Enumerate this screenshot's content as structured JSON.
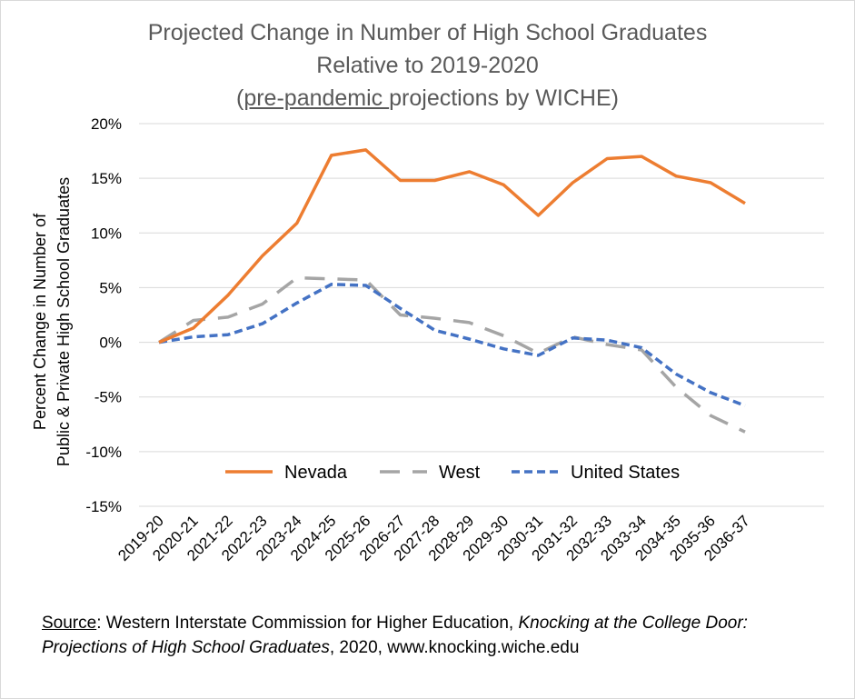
{
  "title": {
    "line1": "Projected Change in Number of High School Graduates",
    "line2": "Relative to 2019-2020",
    "line3_open": "(",
    "line3_underlined": "pre-pandemic ",
    "line3_rest": "projections by WICHE)"
  },
  "source": {
    "label": "Source",
    "text1": ": Western Interstate Commission for Higher Education, ",
    "italic": "Knocking at the College Door: Projections of High School Graduates",
    "text2": ", 2020, www.knocking.wiche.edu"
  },
  "chart_data": {
    "type": "line",
    "title": "Projected Change in Number of High School Graduates Relative to 2019-2020 (pre-pandemic projections by WICHE)",
    "ylabel_line1": "Percent Change in Number of",
    "ylabel_line2": "Public & Private High School Graduates",
    "xlabel": "",
    "ylim": [
      -15,
      20
    ],
    "y_ticks": [
      20,
      15,
      10,
      5,
      0,
      -5,
      -10,
      -15
    ],
    "y_tick_labels": [
      "20%",
      "15%",
      "10%",
      "5%",
      "0%",
      "-5%",
      "-10%",
      "-15%"
    ],
    "grid": true,
    "legend_position": "inside-bottom-center",
    "categories": [
      "2019-20",
      "2020-21",
      "2021-22",
      "2022-23",
      "2023-24",
      "2024-25",
      "2025-26",
      "2026-27",
      "2027-28",
      "2028-29",
      "2029-30",
      "2030-31",
      "2031-32",
      "2032-33",
      "2033-34",
      "2034-35",
      "2035-36",
      "2036-37"
    ],
    "series": [
      {
        "name": "Nevada",
        "color": "#ED7D31",
        "style": "solid",
        "values": [
          0,
          1.3,
          4.3,
          7.9,
          10.9,
          17.1,
          17.6,
          14.8,
          14.8,
          15.6,
          14.4,
          11.6,
          14.6,
          16.8,
          17.0,
          15.2,
          14.6,
          12.7
        ]
      },
      {
        "name": "West",
        "color": "#A5A5A5",
        "style": "long-dash",
        "values": [
          0,
          2.0,
          2.3,
          3.5,
          5.9,
          5.8,
          5.7,
          2.5,
          2.2,
          1.8,
          0.6,
          -1.0,
          0.5,
          -0.2,
          -0.7,
          -4.1,
          -6.7,
          -8.2
        ]
      },
      {
        "name": "United States",
        "color": "#4472C4",
        "style": "short-dash",
        "values": [
          0,
          0.5,
          0.7,
          1.7,
          3.6,
          5.3,
          5.2,
          3.1,
          1.1,
          0.3,
          -0.6,
          -1.2,
          0.4,
          0.2,
          -0.5,
          -2.9,
          -4.6,
          -5.8
        ]
      }
    ]
  }
}
